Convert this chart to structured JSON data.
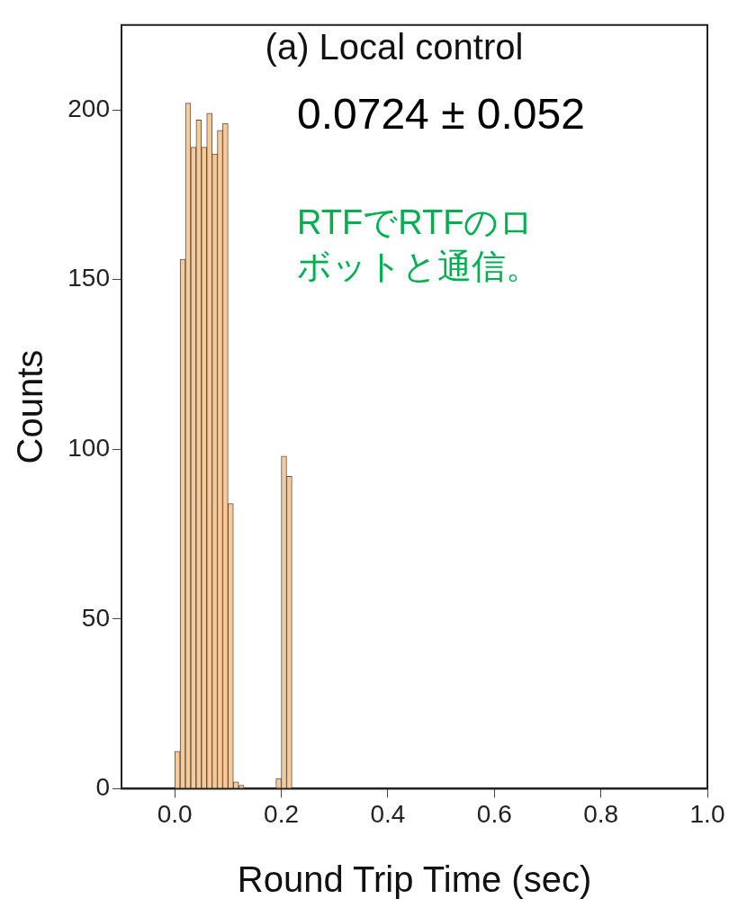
{
  "chart_data": {
    "type": "histogram",
    "title": "(a) Local control",
    "xlabel": "Round Trip Time (sec)",
    "ylabel": "Counts",
    "bins": [
      0.0,
      0.01,
      0.02,
      0.03,
      0.04,
      0.05,
      0.06,
      0.07,
      0.08,
      0.09,
      0.1,
      0.11,
      0.12,
      0.13,
      0.14,
      0.15,
      0.16,
      0.17,
      0.18,
      0.19,
      0.2,
      0.21,
      0.22
    ],
    "values": [
      11,
      156,
      202,
      189,
      197,
      189,
      199,
      187,
      194,
      196,
      84,
      2,
      1,
      0,
      0,
      0,
      0,
      0,
      0,
      3,
      98,
      92
    ],
    "color": "#f9c996",
    "xlim": [
      -0.1,
      1.0
    ],
    "xticks": [
      {
        "value": 0,
        "label": "0.0"
      },
      0.2,
      0.4,
      0.6,
      0.8,
      {
        "value": 1,
        "label": "1.0"
      }
    ],
    "ylim": [
      0,
      225
    ],
    "yticks": [
      0,
      50,
      100,
      150,
      200
    ],
    "grid": false,
    "legend": false,
    "annotations": [
      "0.0724 ± 0.052",
      "RTFでRTFのロボットと通信。"
    ]
  }
}
